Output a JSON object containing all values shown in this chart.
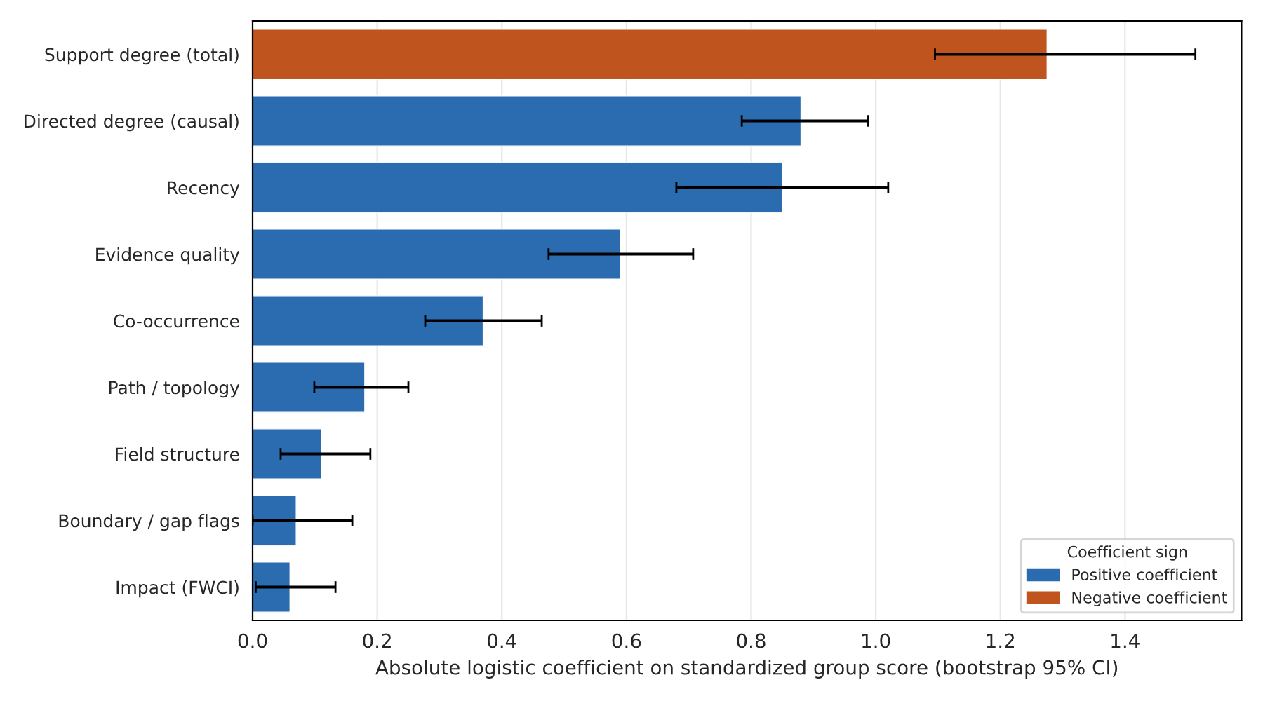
{
  "chart_data": {
    "type": "bar",
    "orientation": "horizontal",
    "xlabel": "Absolute logistic coefficient on standardized group score (bootstrap 95% CI)",
    "categories": [
      "Support degree (total)",
      "Directed degree (causal)",
      "Recency",
      "Evidence quality",
      "Co-occurrence",
      "Path / topology",
      "Field structure",
      "Boundary / gap flags",
      "Impact (FWCI)"
    ],
    "series": [
      {
        "name": "Positive coefficient",
        "color": "#2b6cb0",
        "values": [
          null,
          0.88,
          0.85,
          0.59,
          0.37,
          0.18,
          0.11,
          0.07,
          0.06
        ],
        "errors": [
          null,
          [
            0.785,
            0.988
          ],
          [
            0.68,
            1.02
          ],
          [
            0.475,
            0.707
          ],
          [
            0.277,
            0.464
          ],
          [
            0.099,
            0.25
          ],
          [
            0.045,
            0.189
          ],
          [
            0.0,
            0.16
          ],
          [
            0.005,
            0.133
          ]
        ]
      },
      {
        "name": "Negative coefficient",
        "color": "#c0541f",
        "values": [
          1.275,
          null,
          null,
          null,
          null,
          null,
          null,
          null,
          null
        ],
        "errors": [
          [
            1.095,
            1.513
          ],
          null,
          null,
          null,
          null,
          null,
          null,
          null,
          null
        ]
      }
    ],
    "legend_title": "Coefficient sign",
    "legend": "bottom right",
    "xlim": [
      0,
      1.587
    ],
    "xticks": [
      {
        "value": 0,
        "label": "0.0"
      },
      {
        "value": 0.2,
        "label": "0.2"
      },
      {
        "value": 0.4,
        "label": "0.4"
      },
      {
        "value": 0.6,
        "label": "0.6"
      },
      {
        "value": 0.8,
        "label": "0.8"
      },
      {
        "value": 1,
        "label": "1.0"
      },
      {
        "value": 1.2,
        "label": "1.2"
      },
      {
        "value": 1.4,
        "label": "1.4"
      }
    ],
    "grid": "x"
  }
}
